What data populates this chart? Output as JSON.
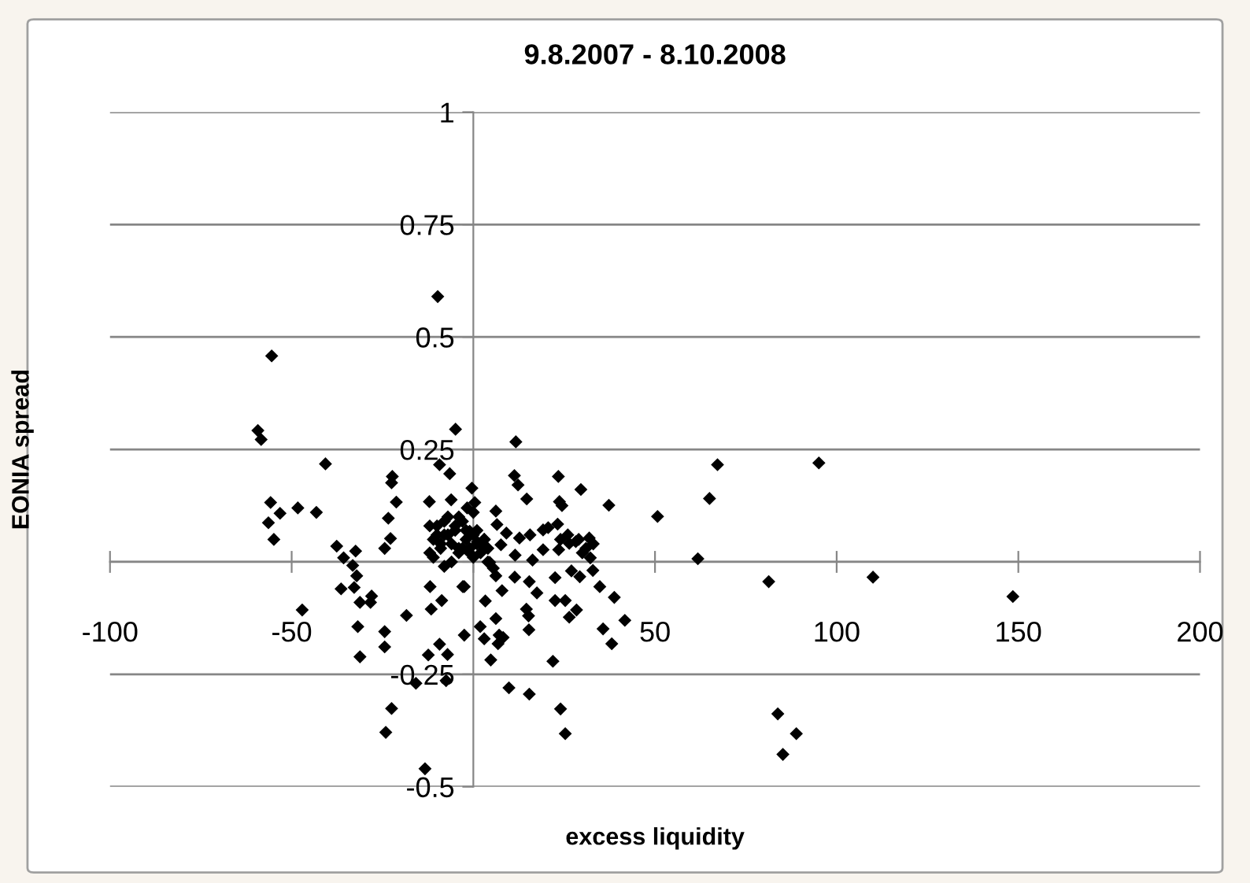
{
  "chart_data": {
    "type": "scatter",
    "title": "9.8.2007 - 8.10.2008",
    "xlabel": "excess liquidity",
    "ylabel": "EONIA spread",
    "xlim": [
      -100,
      200
    ],
    "ylim": [
      -0.5,
      1
    ],
    "xticks": [
      -100,
      -50,
      {
        "value": 0,
        "label": null
      },
      50,
      100,
      150,
      200
    ],
    "yticks": [
      {
        "value": -0.5,
        "label": "-0.5"
      },
      {
        "value": -0.25,
        "label": "-0.25"
      },
      {
        "value": 0,
        "label": null
      },
      {
        "value": 0.25,
        "label": "0.25"
      },
      {
        "value": 0.5,
        "label": "0.5"
      },
      {
        "value": 0.75,
        "label": "0.75"
      },
      {
        "value": 1,
        "label": "1"
      }
    ],
    "grid": "y",
    "marker": "diamond",
    "legend": false,
    "series": [
      {
        "color": "#000000",
        "x": [
          67.2,
          95.1,
          65,
          61.8,
          81.3,
          110,
          148.5,
          83.8,
          88.9,
          85.2,
          11.7,
          11.3,
          12.3,
          23.4,
          14.7,
          23.7,
          24.4,
          29.6,
          37.3,
          50.7,
          -0.4,
          6.2,
          6.5,
          23.2,
          4.5,
          5.5,
          6.2,
          11.4,
          7.9,
          15.4,
          17.5,
          22.5,
          29.3,
          32.9,
          34.8,
          38.8,
          22.5,
          25.3,
          28.4,
          26.4,
          14.6,
          15.2,
          15.3,
          41.7,
          35.7,
          38.1,
          3.3,
          6.2,
          1.9,
          3,
          7.1,
          8.2,
          6.8,
          4.8,
          21.9,
          9.8,
          15.4,
          24,
          25.3,
          -2.5,
          -2.5,
          9.1,
          12.7,
          15.6,
          19.2,
          20.6,
          26.4,
          31.9,
          28.2,
          32.2,
          11.5,
          16.3,
          19.2,
          23.5,
          7.6,
          1.1,
          -1,
          0.4,
          -1.7,
          -55.5,
          -59.3,
          -58.4,
          -40.7,
          -55.8,
          -53.2,
          -56.4,
          -54.9,
          -48.3,
          -43.2,
          -47.1,
          -37.6,
          -35.7,
          -32.4,
          -33.2,
          -32.1,
          -36.4,
          -32.8,
          -31.2,
          -28,
          -28.3,
          -31.8,
          -31.2,
          -22.5,
          -24.1,
          -13.3,
          -24.4,
          -24.4,
          -18.4,
          -15.8,
          -12.4,
          -9.3,
          -7.1,
          -7.5,
          -11.6,
          -8.7,
          -22.3,
          -22.5,
          -21.2,
          -23.4,
          -22.8,
          -24.4,
          -4.9,
          -9.3,
          -6.5,
          -12.1,
          -6.1,
          -11.9,
          -2.9,
          -9.8,
          -12,
          -11,
          -10,
          -9,
          -8,
          -7,
          -6,
          -5,
          -4,
          -3,
          -2,
          -1,
          0,
          1,
          2,
          3,
          4,
          -11,
          -9,
          -7,
          -5,
          -3,
          -1,
          1,
          3,
          -10,
          -8,
          -6,
          -4,
          -2,
          0,
          2,
          -12,
          -8,
          -4,
          0,
          4,
          27,
          29,
          31,
          33,
          30,
          26,
          24
        ],
        "values": [
          0.216,
          0.22,
          0.141,
          0.007,
          -0.044,
          -0.034,
          -0.077,
          -0.338,
          -0.382,
          -0.428,
          0.267,
          0.192,
          0.171,
          0.19,
          0.14,
          0.134,
          0.125,
          0.161,
          0.126,
          0.101,
          0.164,
          0.113,
          0.083,
          0.084,
          -0.001,
          -0.014,
          -0.031,
          -0.034,
          -0.064,
          -0.044,
          -0.069,
          -0.035,
          -0.033,
          -0.019,
          -0.055,
          -0.079,
          -0.086,
          -0.086,
          -0.107,
          -0.123,
          -0.105,
          -0.12,
          -0.151,
          -0.13,
          -0.149,
          -0.182,
          -0.087,
          -0.126,
          -0.144,
          -0.171,
          -0.163,
          -0.168,
          -0.182,
          -0.218,
          -0.221,
          -0.28,
          -0.294,
          -0.327,
          -0.382,
          -0.055,
          -0.163,
          0.064,
          0.053,
          0.06,
          0.071,
          0.076,
          0.041,
          0.053,
          0.045,
          0.009,
          0.015,
          0.004,
          0.027,
          0.027,
          0.038,
          0.044,
          0.068,
          0.132,
          0.12,
          0.458,
          0.292,
          0.272,
          0.218,
          0.132,
          0.108,
          0.087,
          0.05,
          0.12,
          0.11,
          -0.107,
          0.035,
          0.009,
          0.024,
          -0.008,
          -0.031,
          -0.06,
          -0.057,
          -0.09,
          -0.076,
          -0.09,
          -0.144,
          -0.211,
          -0.326,
          -0.379,
          -0.46,
          -0.155,
          -0.189,
          -0.119,
          -0.27,
          -0.207,
          -0.183,
          -0.206,
          -0.264,
          -0.105,
          -0.086,
          0.19,
          0.176,
          0.133,
          0.097,
          0.052,
          0.03,
          0.295,
          0.216,
          0.196,
          0.134,
          0.138,
          -0.055,
          -0.055,
          0.59,
          0.02,
          0.05,
          0.08,
          0.03,
          0.06,
          0.1,
          0.04,
          0.07,
          0.02,
          0.09,
          0.05,
          0.03,
          0.06,
          0.04,
          0.02,
          0.05,
          0.03,
          0.01,
          0.04,
          0.06,
          0.08,
          0.03,
          0.02,
          0.07,
          0.05,
          0.06,
          0.09,
          0.0,
          0.03,
          0.07,
          0.01,
          0.04,
          0.08,
          -0.01,
          0.1,
          0.11,
          0.0,
          -0.02,
          0.05,
          0.03,
          0.04,
          0.02,
          0.06,
          0.05
        ]
      }
    ]
  }
}
